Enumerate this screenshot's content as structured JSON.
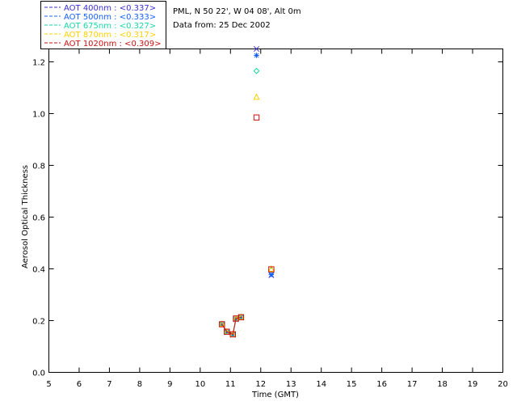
{
  "chart_data": {
    "type": "scatter",
    "header": {
      "site": "PML, N 50 22', W 04 08', Alt 0m",
      "date": "Data from: 25 Dec 2002"
    },
    "xlabel": "Time (GMT)",
    "ylabel": "Aerosol Optical Thickness",
    "xlim": [
      5,
      20
    ],
    "ylim": [
      0.0,
      1.25
    ],
    "x_ticks": [
      "5",
      "6",
      "7",
      "8",
      "9",
      "10",
      "11",
      "12",
      "13",
      "14",
      "15",
      "16",
      "17",
      "18",
      "19",
      "20"
    ],
    "y_ticks": [
      "0.0",
      "0.2",
      "0.4",
      "0.6",
      "0.8",
      "1.0",
      "1.2"
    ],
    "legend": {
      "placement": "top-left",
      "entries": [
        {
          "label": "AOT  400nm : <0.337>",
          "color": "#3a2fd0"
        },
        {
          "label": "AOT  500nm : <0.333>",
          "color": "#1560ff"
        },
        {
          "label": "AOT  675nm : <0.327>",
          "color": "#16d8a8"
        },
        {
          "label": "AOT  870nm : <0.317>",
          "color": "#ffd000"
        },
        {
          "label": "AOT 1020nm : <0.309>",
          "color": "#cc1010"
        }
      ]
    },
    "series": [
      {
        "name": "AOT 400nm",
        "color": "#3a2fd0",
        "marker": "x",
        "x": [
          10.72,
          10.88,
          11.08,
          11.18,
          11.35,
          11.86,
          12.35
        ],
        "y": [
          0.185,
          0.155,
          0.145,
          0.205,
          0.212,
          1.25,
          0.375
        ]
      },
      {
        "name": "AOT 500nm",
        "color": "#1560ff",
        "marker": "asterisk",
        "x": [
          10.72,
          10.88,
          11.08,
          11.18,
          11.35,
          11.86,
          12.35
        ],
        "y": [
          0.186,
          0.156,
          0.146,
          0.206,
          0.213,
          1.225,
          0.378
        ]
      },
      {
        "name": "AOT 675nm",
        "color": "#16d8a8",
        "marker": "diamond",
        "x": [
          10.72,
          10.88,
          11.08,
          11.18,
          11.35,
          11.86,
          12.35
        ],
        "y": [
          0.187,
          0.157,
          0.147,
          0.208,
          0.214,
          1.165,
          0.395
        ]
      },
      {
        "name": "AOT 870nm",
        "color": "#ffd000",
        "marker": "triangle",
        "x": [
          10.72,
          10.88,
          11.08,
          11.18,
          11.35,
          11.86,
          12.35
        ],
        "y": [
          0.188,
          0.158,
          0.148,
          0.209,
          0.215,
          1.065,
          0.401
        ]
      },
      {
        "name": "AOT 1020nm",
        "color": "#cc1010",
        "marker": "square",
        "x": [
          10.72,
          10.88,
          11.08,
          11.18,
          11.35,
          11.86,
          12.35
        ],
        "y": [
          0.186,
          0.157,
          0.147,
          0.208,
          0.213,
          0.985,
          0.398
        ]
      }
    ],
    "connected_ranges": [
      [
        0,
        4
      ]
    ]
  }
}
